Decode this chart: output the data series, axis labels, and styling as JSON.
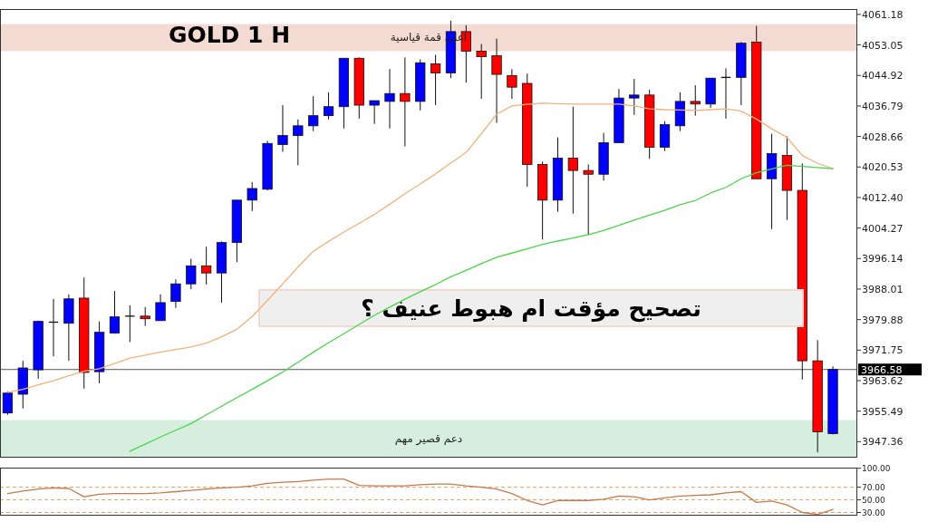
{
  "chart_data": [
    {
      "type": "candlestick",
      "title": "GOLD 1 H",
      "categories": [
        null,
        null,
        null,
        null,
        null,
        null,
        null,
        null,
        null,
        null,
        null,
        null,
        null,
        null,
        null,
        null,
        null,
        null,
        null,
        null,
        null,
        null,
        null,
        null,
        null,
        null,
        null,
        null,
        null,
        null,
        null,
        null,
        null,
        null,
        null,
        null,
        null,
        null,
        null,
        null,
        null,
        null,
        null,
        null,
        null,
        null,
        null,
        null,
        null,
        null,
        null,
        null,
        null,
        null,
        null
      ],
      "ohlc": [
        [
          3955.0,
          3960.8,
          3954.5,
          3960.3
        ],
        [
          3960.0,
          3968.9,
          3956.2,
          3967.0
        ],
        [
          3966.5,
          3979.6,
          3964.1,
          3979.4
        ],
        [
          3979.2,
          3985.4,
          3970.1,
          3979.2
        ],
        [
          3978.9,
          3986.6,
          3968.9,
          3985.4
        ],
        [
          3985.6,
          3991.1,
          3961.5,
          3965.8
        ],
        [
          3966.0,
          3979.4,
          3962.9,
          3976.5
        ],
        [
          3976.3,
          3987.5,
          3976.1,
          3980.6
        ],
        [
          3980.8,
          3983.7,
          3973.9,
          3980.8
        ],
        [
          3980.8,
          3983.2,
          3978.2,
          3980.1
        ],
        [
          3979.6,
          3986.6,
          3979.6,
          3984.4
        ],
        [
          3984.7,
          3990.6,
          3983.0,
          3989.4
        ],
        [
          3989.4,
          3996.1,
          3988.0,
          3994.2
        ],
        [
          3994.2,
          3999.3,
          3989.2,
          3992.3
        ],
        [
          3992.3,
          4000.7,
          3984.4,
          4000.4
        ],
        [
          4000.4,
          4011.7,
          3995.2,
          4011.7
        ],
        [
          4011.7,
          4016.5,
          4008.8,
          4014.8
        ],
        [
          4014.6,
          4027.5,
          4014.3,
          4026.8
        ],
        [
          4026.5,
          4037.0,
          4024.6,
          4028.9
        ],
        [
          4028.9,
          4033.2,
          4021.0,
          4031.5
        ],
        [
          4031.5,
          4039.4,
          4030.1,
          4034.2
        ],
        [
          4034.2,
          4040.4,
          4033.2,
          4036.6
        ],
        [
          4036.6,
          4049.5,
          4030.8,
          4049.5
        ],
        [
          4049.5,
          4049.7,
          4033.4,
          4037.0
        ],
        [
          4037.0,
          4038.2,
          4032.0,
          4038.2
        ],
        [
          4038.0,
          4046.6,
          4030.8,
          4040.1
        ],
        [
          4040.1,
          4049.7,
          4026.0,
          4038.0
        ],
        [
          4038.0,
          4049.2,
          4035.6,
          4048.3
        ],
        [
          4048.0,
          4050.4,
          4037.0,
          4045.6
        ],
        [
          4045.6,
          4059.5,
          4044.2,
          4056.6
        ],
        [
          4056.6,
          4058.3,
          4043.0,
          4051.4
        ],
        [
          4051.4,
          4053.3,
          4038.7,
          4049.9
        ],
        [
          4050.2,
          4054.7,
          4032.3,
          4045.2
        ],
        [
          4044.9,
          4046.6,
          4038.7,
          4041.8
        ],
        [
          4042.8,
          4045.4,
          4015.3,
          4021.2
        ],
        [
          4021.2,
          4022.0,
          4001.2,
          4011.7
        ],
        [
          4011.7,
          4028.4,
          4008.6,
          4022.9
        ],
        [
          4022.9,
          4036.6,
          4008.1,
          4019.6
        ],
        [
          4019.6,
          4021.2,
          4002.4,
          4018.6
        ],
        [
          4018.6,
          4029.6,
          4016.9,
          4027.0
        ],
        [
          4027.0,
          4041.3,
          4027.0,
          4038.9
        ],
        [
          4038.9,
          4044.0,
          4034.4,
          4039.7
        ],
        [
          4039.7,
          4041.1,
          4022.7,
          4025.8
        ],
        [
          4025.8,
          4032.7,
          4024.8,
          4031.8
        ],
        [
          4031.5,
          4040.4,
          4030.1,
          4038.0
        ],
        [
          4038.0,
          4042.3,
          4034.2,
          4037.3
        ],
        [
          4037.3,
          4044.2,
          4036.3,
          4044.2
        ],
        [
          4044.4,
          4046.8,
          4033.4,
          4044.4
        ],
        [
          4044.4,
          4053.8,
          4037.0,
          4053.5
        ],
        [
          4053.8,
          4058.1,
          4017.4,
          4017.4
        ],
        [
          4017.4,
          4029.4,
          4004.0,
          4024.1
        ],
        [
          4023.6,
          4028.7,
          4006.4,
          4014.3
        ],
        [
          4014.3,
          4021.5,
          3963.9,
          3968.9
        ],
        [
          3968.9,
          3974.4,
          3944.5,
          3950.0
        ],
        [
          3949.5,
          3967.4,
          3949.3,
          3966.6
        ]
      ],
      "colors": [
        "#0000ff",
        "#0000ff",
        "#0000ff",
        "#111111",
        "#0000ff",
        "#ff0000",
        "#0000ff",
        "#0000ff",
        "#111111",
        "#ff0000",
        "#0000ff",
        "#0000ff",
        "#0000ff",
        "#ff0000",
        "#0000ff",
        "#0000ff",
        "#0000ff",
        "#0000ff",
        "#0000ff",
        "#0000ff",
        "#0000ff",
        "#0000ff",
        "#0000ff",
        "#ff0000",
        "#0000ff",
        "#0000ff",
        "#ff0000",
        "#0000ff",
        "#ff0000",
        "#0000ff",
        "#ff0000",
        "#ff0000",
        "#ff0000",
        "#ff0000",
        "#ff0000",
        "#ff0000",
        "#0000ff",
        "#ff0000",
        "#ff0000",
        "#0000ff",
        "#0000ff",
        "#0000ff",
        "#ff0000",
        "#0000ff",
        "#0000ff",
        "#ff0000",
        "#0000ff",
        "#111111",
        "#0000ff",
        "#ff0000",
        "#0000ff",
        "#ff0000",
        "#ff0000",
        "#ff0000",
        "#0000ff"
      ],
      "series": [
        {
          "type": "line",
          "color": "#f2b27a",
          "values": [
            3960.5,
            3961.3,
            3962.5,
            3963.6,
            3964.9,
            3966.1,
            3966.8,
            3968.2,
            3969.6,
            3970.4,
            3971.2,
            3971.9,
            3972.6,
            3973.6,
            3975.3,
            3977.3,
            3980.7,
            3985.0,
            3989.4,
            3993.9,
            3998.1,
            4000.7,
            4003.2,
            4005.5,
            4007.9,
            4010.6,
            4013.4,
            4016.0,
            4018.7,
            4021.6,
            4024.4,
            4029.4,
            4034.6,
            4036.8,
            4037.2,
            4037.5,
            4037.4,
            4037.3,
            4037.3,
            4037.3,
            4037.3,
            4036.8,
            4036.0,
            4035.8,
            4035.7,
            4035.6,
            4035.8,
            4036.0,
            4035.4,
            4033.3,
            4030.7,
            4028.4,
            4023.6,
            4021.5,
            4020.1
          ]
        },
        {
          "type": "line",
          "color": "#4cd44c",
          "values": [
            null,
            null,
            null,
            null,
            null,
            null,
            null,
            null,
            3944.8,
            3946.7,
            3948.6,
            3950.4,
            3952.2,
            3954.5,
            3956.8,
            3959.1,
            3961.3,
            3963.6,
            3965.9,
            3968.5,
            3971.2,
            3973.7,
            3976.1,
            3978.6,
            3981.0,
            3983.2,
            3985.3,
            3987.3,
            3989.2,
            3991.3,
            3993.0,
            3994.8,
            3996.5,
            3997.6,
            3998.7,
            3999.9,
            4000.8,
            4001.6,
            4002.5,
            4003.6,
            4005.0,
            4006.4,
            4007.7,
            4009.0,
            4010.5,
            4011.6,
            4013.6,
            4015.1,
            4017.4,
            4019.0,
            4020.0,
            4021.0,
            4020.7,
            4020.4,
            4020.1
          ]
        }
      ],
      "ylim": [
        3943.1,
        4062.6
      ],
      "yticks": [
        4061.18,
        4053.05,
        4044.92,
        4036.79,
        4028.66,
        4020.53,
        {
          "value": 4012.4,
          "label": "4012.40"
        },
        4004.27,
        3996.14,
        3988.01,
        3979.88,
        3971.75,
        3963.62,
        3955.49,
        3947.36
      ],
      "tick_labels": "y",
      "ref_lines": [
        {
          "axis": "y",
          "value": 3966.58,
          "label": "3966.58",
          "color": "#555555"
        }
      ],
      "bands": [
        {
          "axis": "y",
          "from": 4051.4,
          "to": 4058.6,
          "label": "اعلى قمة قياسية",
          "color": "#f3dad3"
        },
        {
          "axis": "y",
          "from": 3943.1,
          "to": 3953.1,
          "label": "دعم قصير مهم",
          "color": "#d5eedd"
        }
      ],
      "annotations": [
        "تصحيح مؤقت ام هبوط عنيف ؟"
      ]
    },
    {
      "type": "line",
      "color": "#c8794a",
      "categories": [
        null,
        null,
        null,
        null,
        null,
        null,
        null,
        null,
        null,
        null,
        null,
        null,
        null,
        null,
        null,
        null,
        null,
        null,
        null,
        null,
        null,
        null,
        null,
        null,
        null,
        null,
        null,
        null,
        null,
        null,
        null,
        null,
        null,
        null,
        null,
        null,
        null,
        null,
        null,
        null,
        null,
        null,
        null,
        null,
        null,
        null,
        null,
        null,
        null,
        null,
        null,
        null,
        null,
        null,
        null
      ],
      "values": [
        60,
        64,
        67,
        69,
        68,
        55,
        59,
        60,
        60,
        60,
        61,
        63,
        65,
        67,
        69,
        70,
        72,
        76,
        78,
        79,
        81,
        83,
        83,
        73,
        72,
        72,
        72,
        74,
        75,
        75,
        72,
        70,
        67,
        60,
        49,
        42,
        49,
        49,
        49,
        51,
        56,
        55,
        50,
        53,
        56,
        57,
        58,
        61,
        63,
        46,
        48,
        42,
        30,
        27,
        35
      ],
      "ylim": [
        25,
        101
      ],
      "yticks": [
        {
          "value": 100,
          "label": "100.00"
        },
        {
          "value": 70,
          "label": "70.00"
        },
        {
          "value": 50,
          "label": "50.00"
        },
        {
          "value": 30,
          "label": "30.00"
        }
      ],
      "tick_labels": "y",
      "ref_lines": [
        {
          "axis": "y",
          "value": 70,
          "color": "#e0a060",
          "line_style": "dashed"
        },
        {
          "axis": "y",
          "value": 50,
          "color": "#e0a060",
          "line_style": "dashed"
        },
        {
          "axis": "y",
          "value": 30,
          "color": "#e0a060",
          "line_style": "dashed"
        }
      ]
    }
  ]
}
